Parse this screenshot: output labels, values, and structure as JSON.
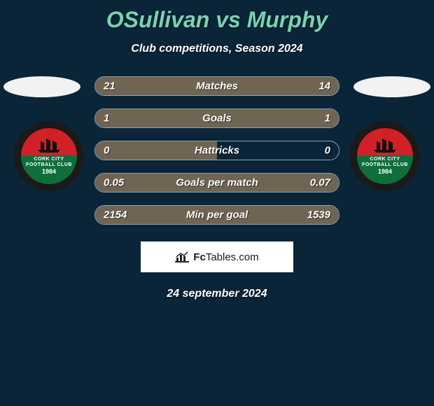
{
  "title": "OSullivan vs Murphy",
  "subtitle": "Club competitions, Season 2024",
  "date": "24 september 2024",
  "attribution": {
    "brand_prefix": "Fc",
    "brand_rest": "Tables.com"
  },
  "badge": {
    "line1": "CORK CITY",
    "line2": "FOOTBALL CLUB",
    "year": "1984",
    "outer_color": "#1a1a1a",
    "top_color": "#d22027",
    "bottom_color": "#0e6f3b"
  },
  "bars": [
    {
      "label": "Matches",
      "left": "21",
      "right": "14",
      "left_pct": 60,
      "right_pct": 40
    },
    {
      "label": "Goals",
      "left": "1",
      "right": "1",
      "left_pct": 50,
      "right_pct": 50
    },
    {
      "label": "Hattricks",
      "left": "0",
      "right": "0",
      "left_pct": 50,
      "right_pct": 0
    },
    {
      "label": "Goals per match",
      "left": "0.05",
      "right": "0.07",
      "left_pct": 42,
      "right_pct": 58
    },
    {
      "label": "Min per goal",
      "left": "2154",
      "right": "1539",
      "left_pct": 58,
      "right_pct": 42
    }
  ],
  "colors": {
    "background": "#0a2438",
    "accent_title": "#79d2b1",
    "bar_fill": "#706452",
    "bar_border": "#8aa3b3"
  }
}
